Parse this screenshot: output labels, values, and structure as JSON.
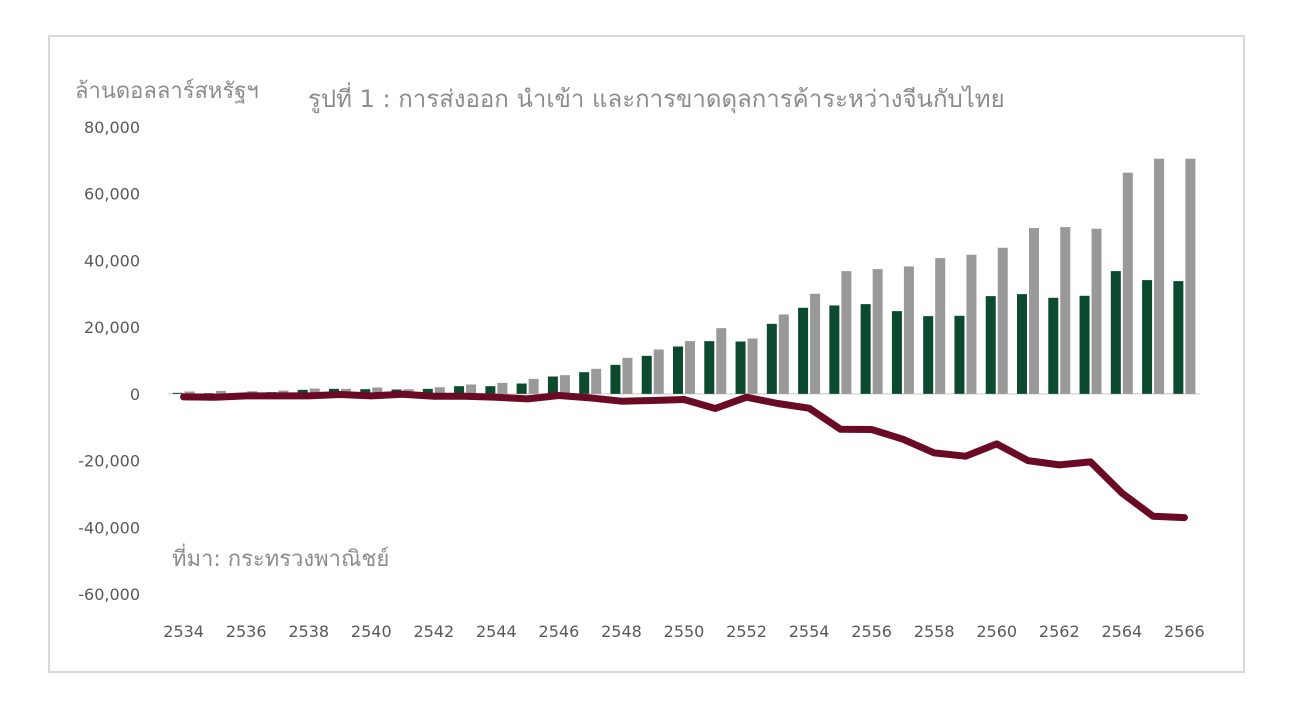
{
  "chart_data": {
    "type": "bar",
    "title": "รูปที่ 1 : การส่งออก นำเข้า และการขาดดุลการค้าระหว่างจีนกับไทย",
    "ylabel": "ล้านดอลลาร์สหรัฐฯ",
    "source": "ที่มา: กระทรวงพาณิชย์",
    "ylim": [
      -60000,
      80000
    ],
    "yticks": [
      80000,
      60000,
      40000,
      20000,
      0,
      -20000,
      -40000,
      -60000
    ],
    "ytick_labels": [
      "80,000",
      "60,000",
      "40,000",
      "20,000",
      "0",
      "-20,000",
      "-40,000",
      "-60,000"
    ],
    "x": [
      2534,
      2535,
      2536,
      2537,
      2538,
      2539,
      2540,
      2541,
      2542,
      2543,
      2544,
      2545,
      2546,
      2547,
      2548,
      2549,
      2550,
      2551,
      2552,
      2553,
      2554,
      2555,
      2556,
      2557,
      2558,
      2559,
      2560,
      2561,
      2562,
      2563,
      2564,
      2565,
      2566
    ],
    "xtick_labels": [
      "2534",
      "2536",
      "2538",
      "2540",
      "2542",
      "2544",
      "2546",
      "2548",
      "2550",
      "2552",
      "2554",
      "2556",
      "2558",
      "2560",
      "2562",
      "2564",
      "2566"
    ],
    "grid": false,
    "legend": "none",
    "series": [
      {
        "type": "bar",
        "color": "#0b4a2e",
        "values": [
          300,
          200,
          300,
          500,
          1200,
          1500,
          1400,
          1300,
          1500,
          2300,
          2300,
          3100,
          5200,
          6500,
          8700,
          11400,
          14200,
          15800,
          15700,
          21000,
          25800,
          26500,
          26900,
          24800,
          23300,
          23400,
          29300,
          29900,
          28800,
          29400,
          36800,
          34100,
          33800
        ]
      },
      {
        "type": "bar",
        "color": "#999999",
        "values": [
          700,
          900,
          800,
          1000,
          1600,
          1500,
          1900,
          1400,
          2000,
          2800,
          3300,
          4500,
          5600,
          7500,
          10800,
          13300,
          15800,
          19700,
          16600,
          23800,
          30000,
          36800,
          37400,
          38200,
          40700,
          41700,
          43800,
          49700,
          50000,
          49500,
          66300,
          70500,
          70500
        ]
      },
      {
        "type": "line",
        "color": "#6b0a24",
        "values": [
          -900,
          -1000,
          -600,
          -600,
          -600,
          -200,
          -600,
          -100,
          -700,
          -700,
          -1000,
          -1500,
          -500,
          -1200,
          -2200,
          -2000,
          -1700,
          -4400,
          -1000,
          -2900,
          -4300,
          -10600,
          -10700,
          -13600,
          -17700,
          -18700,
          -15000,
          -20000,
          -21300,
          -20400,
          -29700,
          -36700,
          -37100
        ]
      }
    ]
  }
}
